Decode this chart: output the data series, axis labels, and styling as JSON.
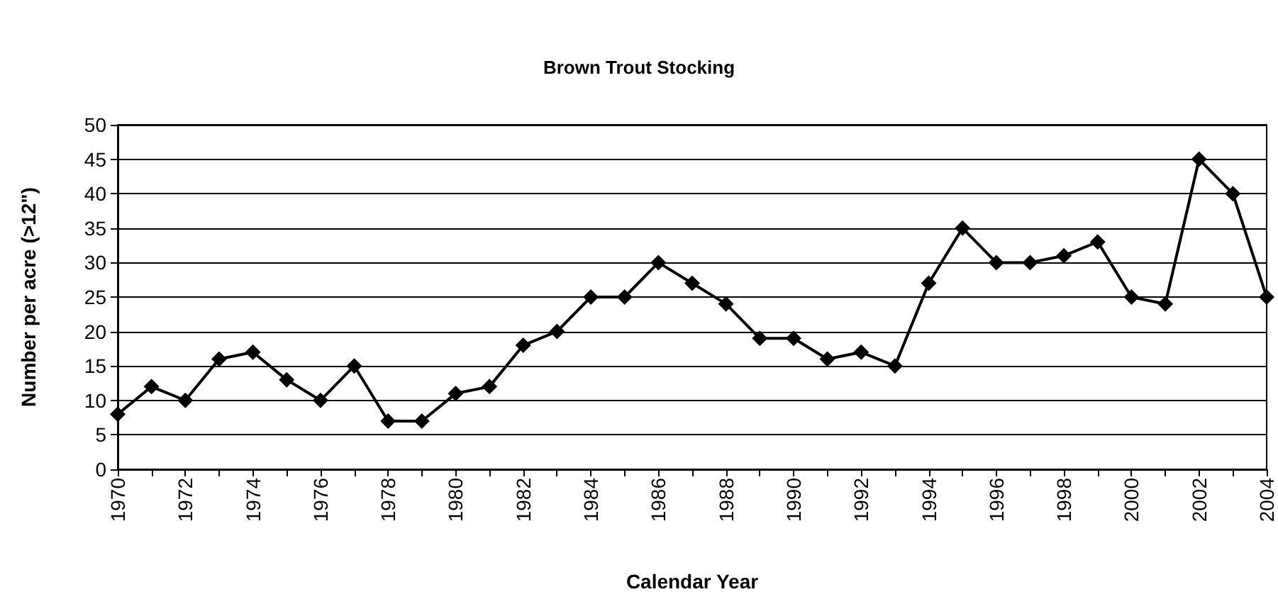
{
  "chart_data": {
    "type": "line",
    "title": "Brown Trout Stocking",
    "xlabel": "Calendar Year",
    "ylabel": "Number per acre (>12\")",
    "categories": [
      "1970",
      null,
      "1972",
      null,
      "1974",
      null,
      "1976",
      null,
      "1978",
      null,
      "1980",
      null,
      "1982",
      null,
      "1984",
      null,
      "1986",
      null,
      "1988",
      null,
      "1990",
      null,
      "1992",
      null,
      "1994",
      null,
      "1996",
      null,
      "1998",
      null,
      "2000",
      null,
      "2002",
      null,
      "2004"
    ],
    "series": [
      {
        "color": "#000000",
        "values": [
          8,
          12,
          10,
          16,
          17,
          13,
          10,
          15,
          7,
          7,
          11,
          12,
          18,
          20,
          25,
          25,
          30,
          27,
          24,
          19,
          19,
          16,
          17,
          15,
          27,
          35,
          30,
          30,
          31,
          33,
          25,
          24,
          45,
          40,
          25
        ]
      }
    ],
    "ylim": [
      0,
      50
    ],
    "yticks": [
      0,
      5,
      10,
      15,
      20,
      25,
      30,
      35,
      40,
      45,
      50
    ],
    "grid": "y",
    "marker": "diamond",
    "line_style": "solid"
  }
}
